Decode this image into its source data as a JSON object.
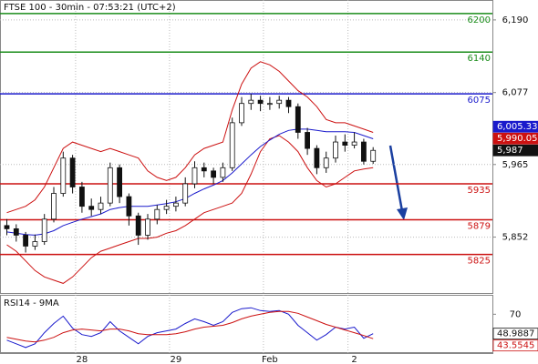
{
  "chart_data": {
    "type": "candlestick",
    "title": "FTSE 100 - 30min - 07:53:21 (UTC+2)",
    "categories": [
      null,
      null,
      null,
      null,
      null,
      null,
      null,
      null,
      "28",
      null,
      null,
      null,
      null,
      null,
      null,
      null,
      null,
      null,
      "29",
      null,
      null,
      null,
      null,
      null,
      null,
      null,
      null,
      null,
      "Feb",
      null,
      null,
      null,
      null,
      null,
      null,
      null,
      null,
      "2",
      null,
      null
    ],
    "open": [
      5870,
      5865,
      5855,
      5838,
      5845,
      5880,
      5920,
      5975,
      5930,
      5900,
      5895,
      5905,
      5960,
      5915,
      5885,
      5855,
      5880,
      5895,
      5900,
      5905,
      5935,
      5960,
      5955,
      5945,
      5960,
      6030,
      6060,
      6065,
      6060,
      6060,
      6065,
      6055,
      6015,
      5990,
      5960,
      5975,
      6000,
      5995,
      6000,
      5970
    ],
    "high": [
      5880,
      5872,
      5860,
      5856,
      5888,
      5930,
      5985,
      5980,
      5938,
      5912,
      5915,
      5968,
      5965,
      5920,
      5890,
      5888,
      5902,
      5910,
      5915,
      5945,
      5970,
      5968,
      5960,
      5968,
      6038,
      6070,
      6075,
      6072,
      6070,
      6072,
      6070,
      6060,
      6022,
      5995,
      5985,
      6010,
      6012,
      6015,
      6005,
      5992
    ],
    "low": [
      5855,
      5845,
      5828,
      5832,
      5840,
      5875,
      5915,
      5920,
      5890,
      5885,
      5888,
      5900,
      5905,
      5870,
      5840,
      5848,
      5872,
      5888,
      5892,
      5900,
      5928,
      5945,
      5935,
      5938,
      5955,
      6025,
      6050,
      6048,
      6050,
      6052,
      6045,
      6005,
      5980,
      5950,
      5952,
      5968,
      5985,
      5990,
      5965,
      5966
    ],
    "close": [
      5865,
      5855,
      5838,
      5845,
      5880,
      5920,
      5975,
      5930,
      5900,
      5895,
      5905,
      5960,
      5915,
      5885,
      5855,
      5880,
      5895,
      5900,
      5905,
      5935,
      5960,
      5955,
      5945,
      5960,
      6030,
      6060,
      6065,
      6060,
      6060,
      6065,
      6055,
      6015,
      5990,
      5960,
      5975,
      6000,
      5995,
      6000,
      5970,
      5987
    ],
    "candle_color": "#111111",
    "bands": {
      "color": "#cc1111",
      "upper": [
        5890,
        5895,
        5900,
        5910,
        5930,
        5960,
        5990,
        6000,
        5995,
        5990,
        5985,
        5990,
        5985,
        5980,
        5975,
        5955,
        5945,
        5940,
        5945,
        5960,
        5980,
        5990,
        5995,
        6000,
        6050,
        6090,
        6115,
        6125,
        6120,
        6110,
        6095,
        6080,
        6070,
        6055,
        6035,
        6030,
        6030,
        6025,
        6020,
        6015
      ],
      "lower": [
        5840,
        5830,
        5815,
        5800,
        5790,
        5785,
        5780,
        5790,
        5805,
        5820,
        5830,
        5835,
        5840,
        5845,
        5850,
        5850,
        5852,
        5858,
        5862,
        5870,
        5880,
        5890,
        5895,
        5900,
        5905,
        5920,
        5950,
        5985,
        6005,
        6010,
        6000,
        5985,
        5960,
        5940,
        5930,
        5935,
        5945,
        5955,
        5958,
        5960
      ]
    },
    "ma": {
      "color": "#1a1acc",
      "values": [
        5860,
        5858,
        5856,
        5855,
        5857,
        5862,
        5870,
        5875,
        5880,
        5884,
        5888,
        5895,
        5898,
        5900,
        5900,
        5900,
        5902,
        5904,
        5907,
        5912,
        5920,
        5927,
        5933,
        5940,
        5952,
        5966,
        5980,
        5993,
        6003,
        6012,
        6018,
        6020,
        6020,
        6018,
        6016,
        6016,
        6016,
        6015,
        6010,
        6005
      ]
    },
    "ylim": [
      5765,
      6221
    ],
    "yticks": [
      {
        "value": 6190,
        "label": "6,190"
      },
      {
        "value": 6077,
        "label": "6,077"
      },
      {
        "value": 5965,
        "label": "5,965"
      },
      {
        "value": 5852,
        "label": "5,852"
      }
    ],
    "grid": true,
    "levels": [
      {
        "value": 6200,
        "color": "#1a8c1a"
      },
      {
        "value": 6140,
        "color": "#1a8c1a"
      },
      {
        "value": 6075,
        "color": "#1a1acc"
      },
      {
        "value": 5935,
        "color": "#cc1111"
      },
      {
        "value": 5879,
        "color": "#cc1111"
      },
      {
        "value": 5825,
        "color": "#cc1111"
      }
    ],
    "price_labels": [
      {
        "value": 6005.33,
        "label": "6,005.33",
        "color": "#1a1acc"
      },
      {
        "value": 5990.05,
        "label": "5,990.05",
        "color": "#cc1111"
      },
      {
        "value": 5987,
        "label": "5,987",
        "color": "#111111"
      }
    ],
    "indicator": {
      "type": "line",
      "title": "RSI14 - 9MA",
      "ylim": [
        28,
        90
      ],
      "yticks": [
        70
      ],
      "series": [
        {
          "color": "#1a1acc",
          "values": [
            42,
            38,
            34,
            38,
            50,
            60,
            68,
            55,
            48,
            46,
            50,
            62,
            52,
            45,
            38,
            46,
            50,
            52,
            54,
            60,
            65,
            62,
            58,
            62,
            72,
            76,
            77,
            74,
            73,
            74,
            70,
            58,
            50,
            42,
            48,
            56,
            54,
            56,
            44,
            48.9887
          ]
        },
        {
          "color": "#cc1111",
          "values": [
            45,
            43,
            41,
            40,
            42,
            45,
            50,
            53,
            54,
            53,
            52,
            54,
            54,
            52,
            49,
            48,
            48,
            48,
            49,
            51,
            54,
            56,
            57,
            58,
            61,
            65,
            68,
            70,
            72,
            73,
            73,
            71,
            67,
            63,
            59,
            56,
            53,
            50,
            47,
            43.5545
          ]
        }
      ],
      "last_labels": [
        {
          "value": 48.9887,
          "label": "48.9887",
          "color": "#111111"
        },
        {
          "value": 43.5545,
          "label": "43.5545",
          "color": "#cc1111"
        }
      ]
    }
  }
}
